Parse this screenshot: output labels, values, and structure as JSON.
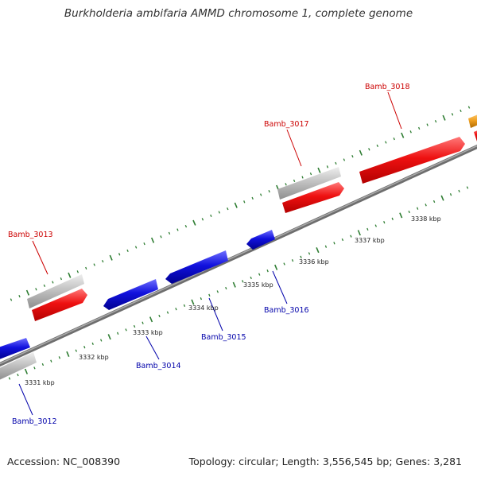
{
  "title": "Burkholderia ambifaria AMMD chromosome 1, complete genome",
  "footer": {
    "accession": "Accession: NC_008390",
    "summary": "Topology: circular; Length: 3,556,545 bp; Genes: 3,281"
  },
  "colors": {
    "forward_cds": "#ee1111",
    "reverse_cds": "#1111dd",
    "gene_bar": "#c2c2c2",
    "backbone": "#8a8a8a",
    "tick": "#2e7d32",
    "forward_label": "#cc0000",
    "reverse_label": "#0000aa",
    "partial_feature": "#f0a020"
  },
  "scale_ticks": [
    "3331 kbp",
    "3332 kbp",
    "3333 kbp",
    "3334 kbp",
    "3335 kbp",
    "3336 kbp",
    "3337 kbp",
    "3338 kbp"
  ],
  "forward_genes": [
    {
      "label": "Bamb_3013"
    },
    {
      "label": "Bamb_3017"
    },
    {
      "label": "Bamb_3018"
    }
  ],
  "reverse_genes": [
    {
      "label": "Bamb_3012"
    },
    {
      "label": "Bamb_3014"
    },
    {
      "label": "Bamb_3015"
    },
    {
      "label": "Bamb_3016"
    }
  ]
}
